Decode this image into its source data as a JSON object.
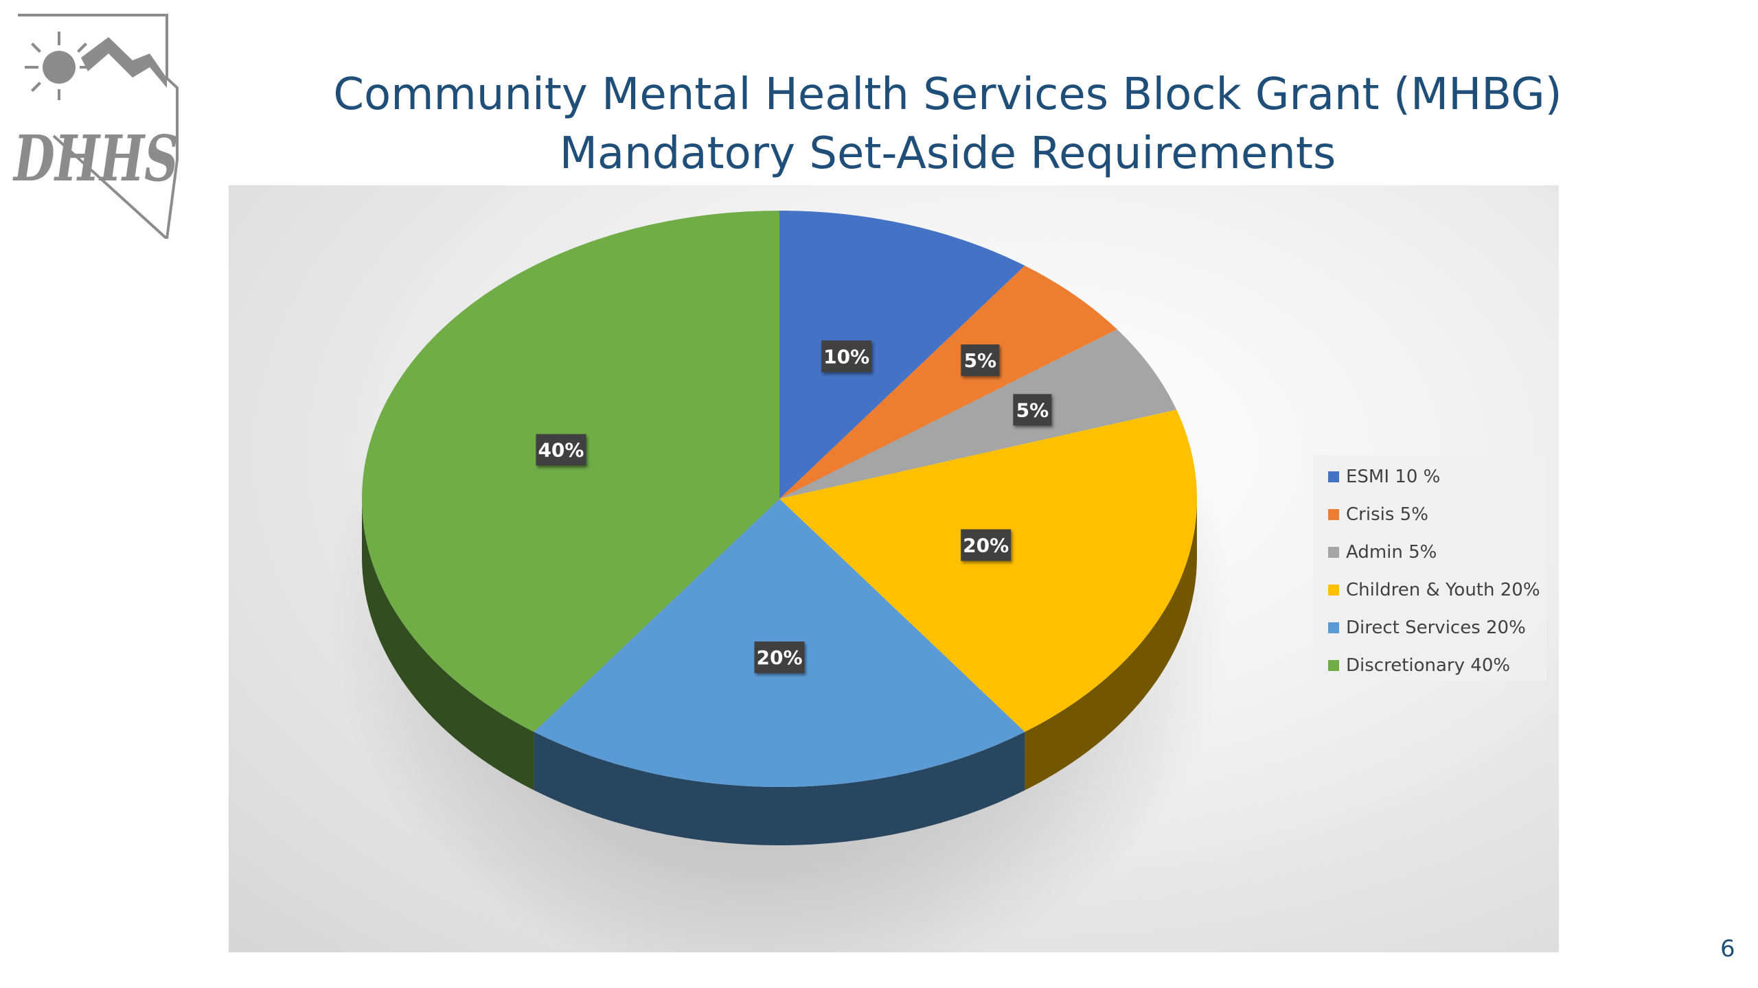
{
  "slide": {
    "title_line1": "Community Mental Health Services Block Grant (MHBG)",
    "title_line2": "Mandatory Set-Aside Requirements",
    "page_number": "6",
    "logo_text": "DHHS"
  },
  "chart_data": {
    "type": "pie",
    "style": "3d",
    "labels": [
      "ESMI 10 %",
      "Crisis 5%",
      "Admin 5%",
      "Children & Youth 20%",
      "Direct Services 20%",
      "Discretionary 40%"
    ],
    "values": [
      10,
      5,
      5,
      20,
      20,
      40
    ],
    "data_labels": [
      "10%",
      "5%",
      "5%",
      "20%",
      "20%",
      "40%"
    ],
    "colors": [
      "#4472c4",
      "#ed7d31",
      "#a5a5a5",
      "#ffc000",
      "#5b9bd5",
      "#70ad47"
    ],
    "legend_position": "right"
  }
}
